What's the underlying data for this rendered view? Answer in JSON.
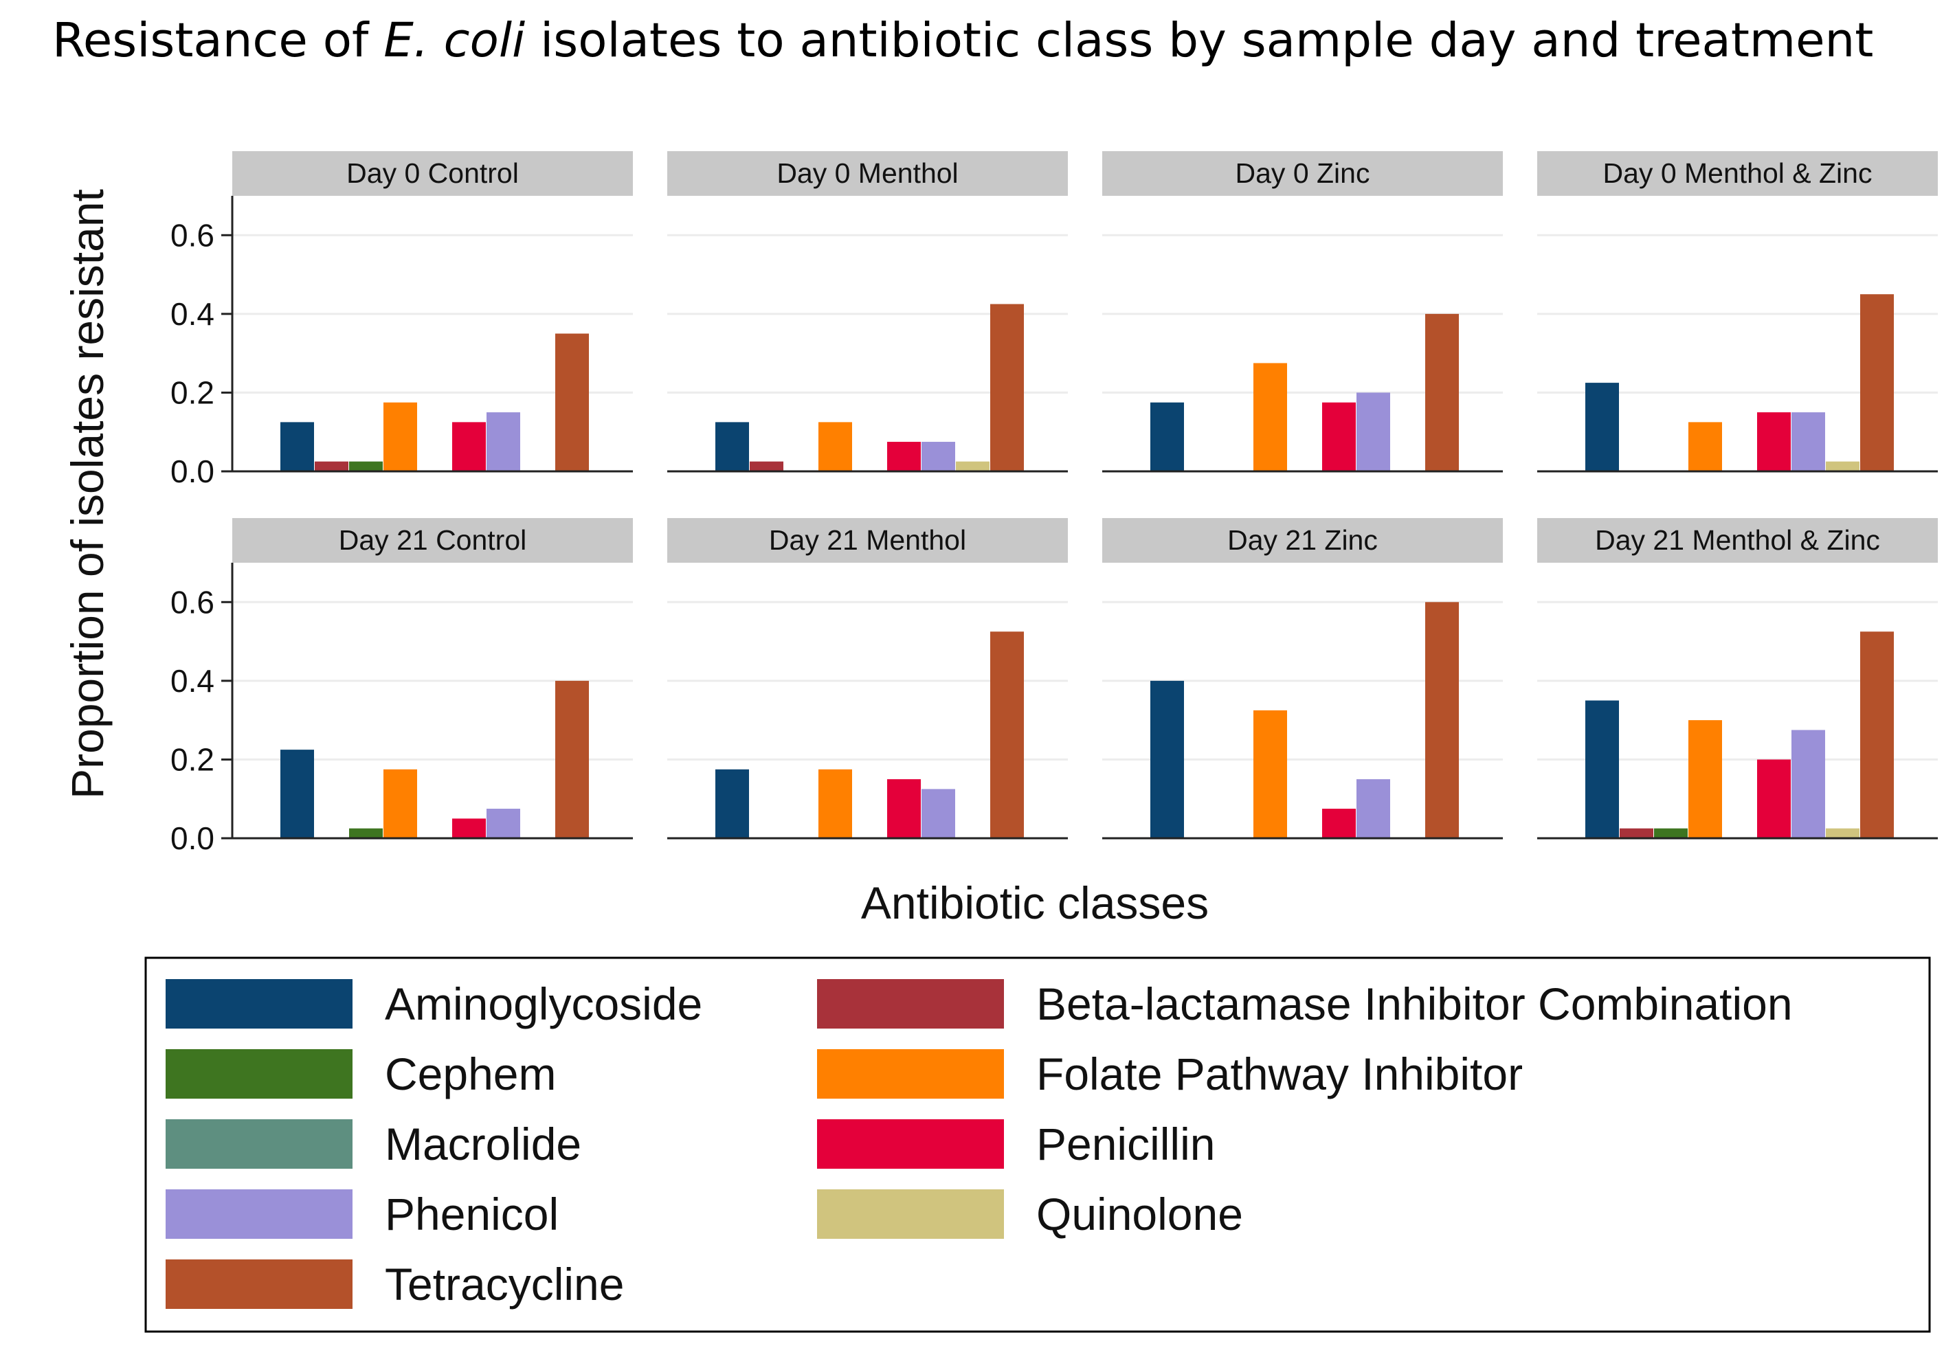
{
  "chart_data": {
    "type": "bar",
    "title": {
      "before": "Resistance of ",
      "italic": "E. coli",
      "after": " isolates to antibiotic class by sample day and treatment"
    },
    "xlabel": "Antibiotic classes",
    "ylabel": "Proportion of isolates resistant",
    "ylim": [
      0,
      0.7
    ],
    "yticks": [
      "0.0",
      "0.2",
      "0.4",
      "0.6"
    ],
    "grid": true,
    "legend_position": "bottom",
    "categories": [
      "Aminoglycoside",
      "Beta-lactamase Inhibitor Combination",
      "Cephem",
      "Folate Pathway Inhibitor",
      "Macrolide",
      "Penicillin",
      "Phenicol",
      "Quinolone",
      "Tetracycline"
    ],
    "colors": [
      "#0b4470",
      "#a8323a",
      "#3e7520",
      "#ff8000",
      "#5e8f80",
      "#e4003a",
      "#9a90d8",
      "#d0c47e",
      "#b4512a"
    ],
    "legend_order": [
      [
        "Aminoglycoside",
        "Beta-lactamase Inhibitor Combination"
      ],
      [
        "Cephem",
        "Folate Pathway Inhibitor"
      ],
      [
        "Macrolide",
        "Penicillin"
      ],
      [
        "Phenicol",
        "Quinolone"
      ],
      [
        "Tetracycline",
        ""
      ]
    ],
    "panels": [
      {
        "label": "Day 0 Control",
        "values": [
          0.125,
          0.025,
          0.025,
          0.175,
          0,
          0.125,
          0.15,
          0,
          0.35
        ]
      },
      {
        "label": "Day 0 Menthol",
        "values": [
          0.125,
          0.025,
          0,
          0.125,
          0,
          0.075,
          0.075,
          0.025,
          0.425
        ]
      },
      {
        "label": "Day 0 Zinc",
        "values": [
          0.175,
          0,
          0,
          0.275,
          0,
          0.175,
          0.2,
          0,
          0.4
        ]
      },
      {
        "label": "Day 0 Menthol & Zinc",
        "values": [
          0.225,
          0,
          0,
          0.125,
          0,
          0.15,
          0.15,
          0.025,
          0.45
        ]
      },
      {
        "label": "Day 21 Control",
        "values": [
          0.225,
          0,
          0.025,
          0.175,
          0,
          0.05,
          0.075,
          0,
          0.4
        ]
      },
      {
        "label": "Day 21 Menthol",
        "values": [
          0.175,
          0,
          0,
          0.175,
          0,
          0.15,
          0.125,
          0,
          0.525
        ]
      },
      {
        "label": "Day 21 Zinc",
        "values": [
          0.4,
          0,
          0,
          0.325,
          0,
          0.075,
          0.15,
          0,
          0.6
        ]
      },
      {
        "label": "Day 21 Menthol & Zinc",
        "values": [
          0.35,
          0.025,
          0.025,
          0.3,
          0,
          0.2,
          0.275,
          0.025,
          0.525
        ]
      }
    ]
  }
}
